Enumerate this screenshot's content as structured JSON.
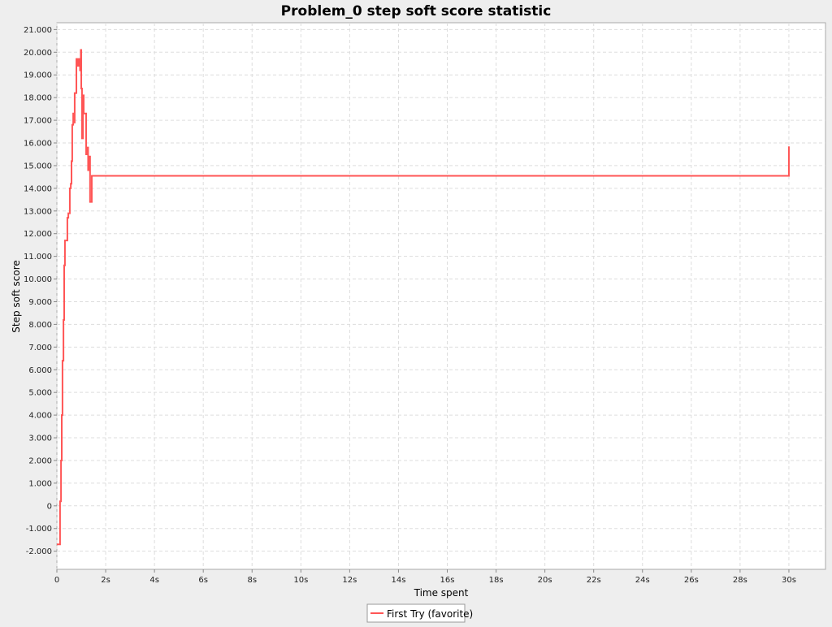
{
  "chart_data": {
    "type": "line",
    "title": "Problem_0 step soft score statistic",
    "xlabel": "Time spent",
    "ylabel": "Step soft score",
    "xlim": [
      0,
      31.5
    ],
    "ylim": [
      -2800,
      21300
    ],
    "x_ticks": [
      {
        "value": 0,
        "label": "0"
      },
      {
        "value": 2,
        "label": "2s"
      },
      {
        "value": 4,
        "label": "4s"
      },
      {
        "value": 6,
        "label": "6s"
      },
      {
        "value": 8,
        "label": "8s"
      },
      {
        "value": 10,
        "label": "10s"
      },
      {
        "value": 12,
        "label": "12s"
      },
      {
        "value": 14,
        "label": "14s"
      },
      {
        "value": 16,
        "label": "16s"
      },
      {
        "value": 18,
        "label": "18s"
      },
      {
        "value": 20,
        "label": "20s"
      },
      {
        "value": 22,
        "label": "22s"
      },
      {
        "value": 24,
        "label": "24s"
      },
      {
        "value": 26,
        "label": "26s"
      },
      {
        "value": 28,
        "label": "28s"
      },
      {
        "value": 30,
        "label": "30s"
      }
    ],
    "y_ticks": [
      {
        "value": -2000,
        "label": "-2.000"
      },
      {
        "value": -1000,
        "label": "-1.000"
      },
      {
        "value": 0,
        "label": "0"
      },
      {
        "value": 1000,
        "label": "1.000"
      },
      {
        "value": 2000,
        "label": "2.000"
      },
      {
        "value": 3000,
        "label": "3.000"
      },
      {
        "value": 4000,
        "label": "4.000"
      },
      {
        "value": 5000,
        "label": "5.000"
      },
      {
        "value": 6000,
        "label": "6.000"
      },
      {
        "value": 7000,
        "label": "7.000"
      },
      {
        "value": 8000,
        "label": "8.000"
      },
      {
        "value": 9000,
        "label": "9.000"
      },
      {
        "value": 10000,
        "label": "10.000"
      },
      {
        "value": 11000,
        "label": "11.000"
      },
      {
        "value": 12000,
        "label": "12.000"
      },
      {
        "value": 13000,
        "label": "13.000"
      },
      {
        "value": 14000,
        "label": "14.000"
      },
      {
        "value": 15000,
        "label": "15.000"
      },
      {
        "value": 16000,
        "label": "16.000"
      },
      {
        "value": 17000,
        "label": "17.000"
      },
      {
        "value": 18000,
        "label": "18.000"
      },
      {
        "value": 19000,
        "label": "19.000"
      },
      {
        "value": 20000,
        "label": "20.000"
      },
      {
        "value": 21000,
        "label": "21.000"
      }
    ],
    "grid": true,
    "legend_position": "bottom-center",
    "series": [
      {
        "name": "First Try (favorite)",
        "color": "#ff5555",
        "step": true,
        "points": [
          [
            0.0,
            -1700
          ],
          [
            0.13,
            -1700
          ],
          [
            0.13,
            200
          ],
          [
            0.17,
            200
          ],
          [
            0.17,
            2000
          ],
          [
            0.2,
            2000
          ],
          [
            0.2,
            4000
          ],
          [
            0.23,
            4000
          ],
          [
            0.23,
            6400
          ],
          [
            0.27,
            6400
          ],
          [
            0.27,
            8200
          ],
          [
            0.3,
            8200
          ],
          [
            0.3,
            10600
          ],
          [
            0.33,
            10600
          ],
          [
            0.33,
            11700
          ],
          [
            0.43,
            11700
          ],
          [
            0.43,
            12700
          ],
          [
            0.47,
            12700
          ],
          [
            0.47,
            12900
          ],
          [
            0.53,
            12900
          ],
          [
            0.53,
            14000
          ],
          [
            0.57,
            14000
          ],
          [
            0.57,
            14200
          ],
          [
            0.6,
            14200
          ],
          [
            0.6,
            15200
          ],
          [
            0.63,
            15200
          ],
          [
            0.63,
            16800
          ],
          [
            0.67,
            16800
          ],
          [
            0.67,
            17300
          ],
          [
            0.7,
            17300
          ],
          [
            0.7,
            16900
          ],
          [
            0.73,
            16900
          ],
          [
            0.73,
            18200
          ],
          [
            0.8,
            18200
          ],
          [
            0.8,
            19700
          ],
          [
            0.85,
            19700
          ],
          [
            0.85,
            19400
          ],
          [
            0.9,
            19400
          ],
          [
            0.9,
            19700
          ],
          [
            0.95,
            19700
          ],
          [
            0.95,
            19200
          ],
          [
            0.98,
            19200
          ],
          [
            0.98,
            20100
          ],
          [
            1.0,
            20100
          ],
          [
            1.0,
            18400
          ],
          [
            1.03,
            18400
          ],
          [
            1.03,
            16200
          ],
          [
            1.07,
            16200
          ],
          [
            1.07,
            18100
          ],
          [
            1.1,
            18100
          ],
          [
            1.1,
            17300
          ],
          [
            1.2,
            17300
          ],
          [
            1.2,
            15500
          ],
          [
            1.23,
            15500
          ],
          [
            1.23,
            15800
          ],
          [
            1.28,
            15800
          ],
          [
            1.28,
            14800
          ],
          [
            1.33,
            14800
          ],
          [
            1.33,
            15400
          ],
          [
            1.36,
            15400
          ],
          [
            1.36,
            13400
          ],
          [
            1.43,
            13400
          ],
          [
            1.43,
            14550
          ],
          [
            30.0,
            14550
          ],
          [
            30.0,
            15850
          ]
        ]
      }
    ]
  }
}
